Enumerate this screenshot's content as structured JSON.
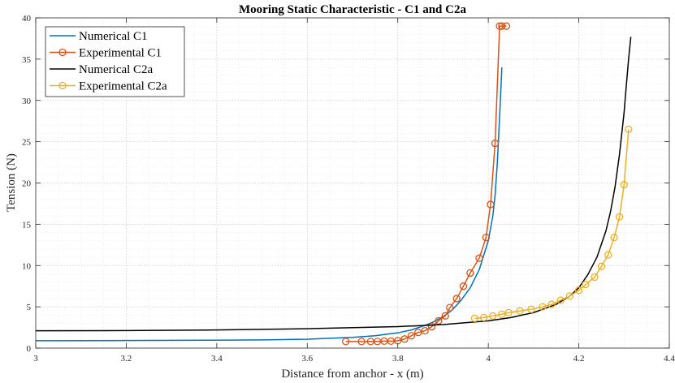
{
  "chart_data": {
    "type": "line",
    "title": "Mooring Static Characteristic - C1 and C2a",
    "xlabel": "Distance from anchor - x (m)",
    "ylabel": "Tension (N)",
    "xlim": [
      3,
      4.4
    ],
    "ylim": [
      0,
      40
    ],
    "x_ticks": [
      "3",
      "3.2",
      "3.4",
      "3.6",
      "3.8",
      "4",
      "4.2",
      "4.4"
    ],
    "y_ticks": [
      "0",
      "5",
      "10",
      "15",
      "20",
      "25",
      "30",
      "35",
      "40"
    ],
    "grid": "major and minor, dotted",
    "legend_position": "top-left",
    "series": [
      {
        "name": "Numerical C1",
        "color": "#0072BD",
        "style": "line",
        "x": [
          3.0,
          3.2,
          3.4,
          3.5,
          3.6,
          3.7,
          3.75,
          3.8,
          3.83,
          3.86,
          3.88,
          3.9,
          3.92,
          3.94,
          3.96,
          3.98,
          4.0,
          4.01,
          4.015,
          4.02,
          4.025,
          4.03
        ],
        "y": [
          0.9,
          0.92,
          0.96,
          1.0,
          1.08,
          1.3,
          1.5,
          1.85,
          2.2,
          2.75,
          3.2,
          3.8,
          4.6,
          5.8,
          7.3,
          9.5,
          13.0,
          16.0,
          18.5,
          22.5,
          28.0,
          34.0
        ]
      },
      {
        "name": "Experimental C1",
        "color": "#D95319",
        "style": "line-marker",
        "x": [
          3.685,
          3.72,
          3.74,
          3.755,
          3.77,
          3.785,
          3.8,
          3.815,
          3.83,
          3.845,
          3.86,
          3.875,
          3.89,
          3.905,
          3.915,
          3.93,
          3.945,
          3.96,
          3.98,
          3.995,
          4.005,
          4.015,
          4.025,
          4.03,
          4.04
        ],
        "y": [
          0.8,
          0.8,
          0.8,
          0.8,
          0.85,
          0.85,
          0.9,
          1.1,
          1.5,
          1.9,
          2.1,
          2.6,
          3.3,
          3.9,
          4.9,
          6.0,
          7.5,
          9.1,
          10.9,
          13.4,
          17.4,
          24.8,
          39.0,
          39.0,
          39.0
        ]
      },
      {
        "name": "Numerical C2a",
        "color": "#000000",
        "style": "line",
        "x": [
          3.0,
          3.2,
          3.4,
          3.6,
          3.8,
          3.9,
          4.0,
          4.05,
          4.1,
          4.15,
          4.18,
          4.2,
          4.22,
          4.24,
          4.26,
          4.27,
          4.28,
          4.29,
          4.3,
          4.305,
          4.31,
          4.315
        ],
        "y": [
          2.1,
          2.12,
          2.2,
          2.35,
          2.6,
          2.85,
          3.3,
          3.7,
          4.3,
          5.3,
          6.3,
          7.3,
          8.9,
          11.0,
          14.2,
          16.5,
          19.5,
          23.5,
          28.5,
          31.8,
          35.0,
          37.7
        ]
      },
      {
        "name": "Experimental C2a",
        "color": "#EDB120",
        "style": "line-marker",
        "x": [
          3.97,
          3.99,
          4.01,
          4.03,
          4.045,
          4.07,
          4.095,
          4.12,
          4.14,
          4.16,
          4.18,
          4.2,
          4.215,
          4.235,
          4.25,
          4.265,
          4.278,
          4.29,
          4.3,
          4.31
        ],
        "y": [
          3.6,
          3.7,
          3.9,
          4.1,
          4.3,
          4.5,
          4.7,
          5.0,
          5.3,
          5.8,
          6.3,
          7.0,
          7.7,
          8.6,
          9.9,
          11.3,
          13.4,
          15.9,
          19.8,
          26.5
        ]
      }
    ]
  }
}
